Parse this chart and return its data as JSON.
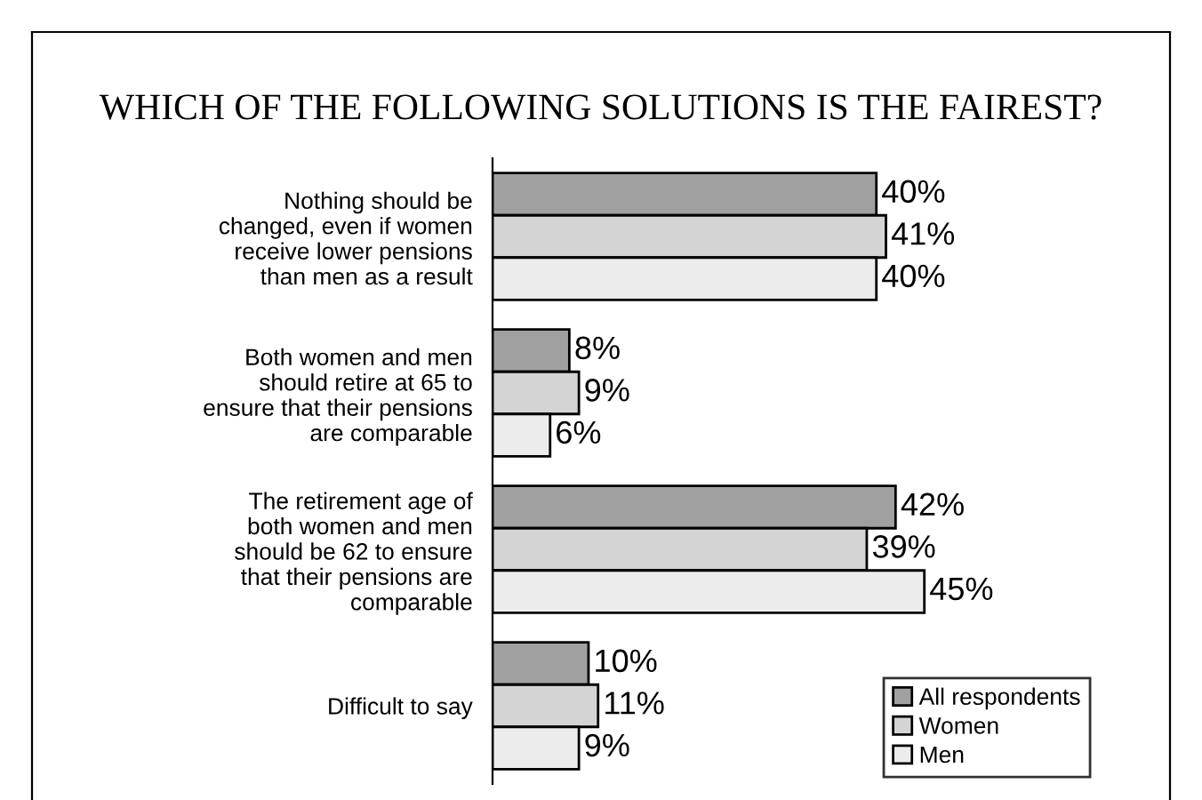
{
  "chart_data": {
    "type": "bar",
    "orientation": "horizontal",
    "title": "WHICH OF THE FOLLOWING SOLUTIONS IS THE FAIREST?",
    "categories": [
      "Nothing should be\nchanged, even if women\nreceive lower pensions\nthan men as a result",
      "Both women and men\nshould retire at 65 to\nensure that their pensions\nare comparable",
      "The retirement age of\nboth women and men\nshould be 62 to ensure\nthat their pensions are\ncomparable",
      "Difficult to say"
    ],
    "series": [
      {
        "name": "All respondents",
        "color": "#a0a0a0",
        "values": [
          40,
          8,
          42,
          10
        ],
        "value_labels": [
          "40%",
          "8%",
          "42%",
          "10%"
        ]
      },
      {
        "name": "Women",
        "color": "#d4d4d4",
        "values": [
          41,
          9,
          39,
          11
        ],
        "value_labels": [
          "41%",
          "9%",
          "39%",
          "11%"
        ]
      },
      {
        "name": "Men",
        "color": "#ececec",
        "values": [
          40,
          6,
          45,
          9
        ],
        "value_labels": [
          "40%",
          "6%",
          "45%",
          "9%"
        ]
      }
    ],
    "legend": "bottom right",
    "grid": false
  }
}
